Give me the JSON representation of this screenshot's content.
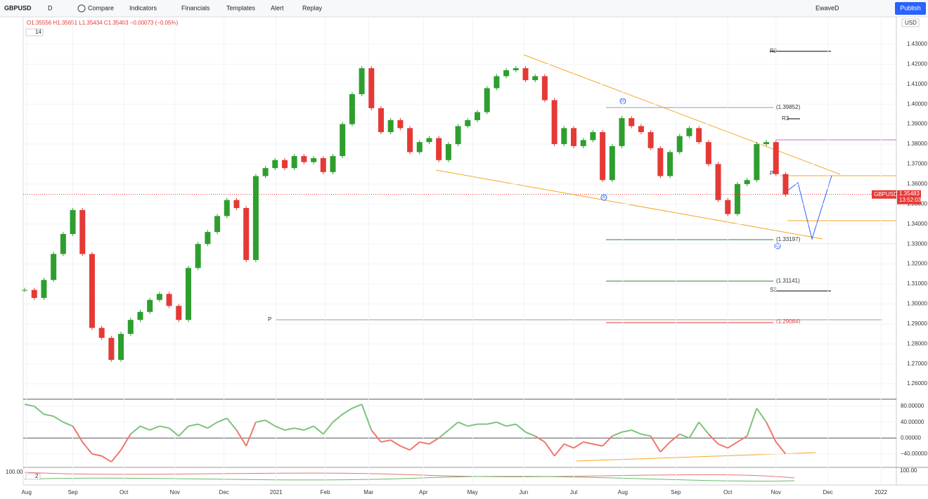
{
  "toolbar": {
    "symbol": "GBPUSD",
    "interval": "D",
    "compare": "Compare",
    "indicators": "Indicators",
    "financials": "Financials",
    "templates": "Templates",
    "alert": "Alert",
    "replay": "Replay",
    "layout": "EwaveD",
    "publish": "Publish",
    "currency": "USD"
  },
  "legend": {
    "ohlc": "O1.35556 H1.35651 L1.35434 C1.35483 −0.00073 (−0.05%)",
    "length": "14"
  },
  "price_tag": {
    "symbol": "GBPUSD",
    "price": "1.35483",
    "countdown": "13:52:03"
  },
  "annotations": {
    "r3_top": "R3",
    "level_b": "(1.39852)",
    "r3_mid": "R3",
    "pivot_right": "P",
    "level_c": "(1.33197)",
    "level_s": "(1.31141)",
    "s3": "S3",
    "pivot_left": "P",
    "level_low": "(1.29084)",
    "wave_a": "A",
    "wave_b": "B",
    "wave_c": "C",
    "pane3_top": "100.00",
    "pane3_left": "100.00",
    "pane3_setting": "2"
  },
  "chart_data": [
    {
      "type": "candlestick",
      "up_color": "#2e9e2e",
      "down_color": "#e53935",
      "close": [
        1.307,
        1.303,
        1.312,
        1.325,
        1.335,
        1.347,
        1.325,
        1.288,
        1.283,
        1.272,
        1.285,
        1.292,
        1.296,
        1.302,
        1.305,
        1.299,
        1.292,
        1.318,
        1.33,
        1.336,
        1.344,
        1.352,
        1.348,
        1.322,
        1.364,
        1.368,
        1.372,
        1.368,
        1.374,
        1.371,
        1.373,
        1.366,
        1.374,
        1.39,
        1.405,
        1.418,
        1.398,
        1.386,
        1.392,
        1.388,
        1.376,
        1.381,
        1.383,
        1.372,
        1.38,
        1.389,
        1.392,
        1.396,
        1.408,
        1.414,
        1.417,
        1.418,
        1.412,
        1.414,
        1.402,
        1.38,
        1.388,
        1.379,
        1.382,
        1.386,
        1.362,
        1.379,
        1.393,
        1.389,
        1.386,
        1.378,
        1.364,
        1.376,
        1.384,
        1.388,
        1.381,
        1.37,
        1.352,
        1.345,
        1.36,
        1.362,
        1.38,
        1.381,
        1.365,
        1.3548
      ],
      "xlim": [
        -0.15,
        90.5
      ],
      "xticks": [
        {
          "value": 0.2,
          "label": "Aug"
        },
        {
          "value": 5.0,
          "label": "Sep"
        },
        {
          "value": 10.3,
          "label": "Oct"
        },
        {
          "value": 15.6,
          "label": "Nov"
        },
        {
          "value": 20.7,
          "label": "Dec"
        },
        {
          "value": 26.1,
          "label": "2021"
        },
        {
          "value": 31.2,
          "label": "Feb"
        },
        {
          "value": 35.7,
          "label": "Mar"
        },
        {
          "value": 41.4,
          "label": "Apr"
        },
        {
          "value": 46.5,
          "label": "May"
        },
        {
          "value": 51.8,
          "label": "Jun"
        },
        {
          "value": 57.0,
          "label": "Jul"
        },
        {
          "value": 62.1,
          "label": "Aug"
        },
        {
          "value": 67.6,
          "label": "Sep"
        },
        {
          "value": 73.0,
          "label": "Oct"
        },
        {
          "value": 78.0,
          "label": "Nov"
        },
        {
          "value": 83.4,
          "label": "Dec"
        },
        {
          "value": 88.9,
          "label": "2022"
        }
      ],
      "ylim": [
        1.2523,
        1.4437
      ],
      "yticks": [
        {
          "value": 1.43,
          "label": "1.43000"
        },
        {
          "value": 1.42,
          "label": "1.42000"
        },
        {
          "value": 1.41,
          "label": "1.41000"
        },
        {
          "value": 1.4,
          "label": "1.40000"
        },
        {
          "value": 1.39,
          "label": "1.39000"
        },
        {
          "value": 1.38,
          "label": "1.38000"
        },
        {
          "value": 1.37,
          "label": "1.37000"
        },
        {
          "value": 1.36,
          "label": "1.36000"
        },
        {
          "value": 1.35,
          "label": "1.35000"
        },
        {
          "value": 1.34,
          "label": "1.34000"
        },
        {
          "value": 1.33,
          "label": "1.33000"
        },
        {
          "value": 1.32,
          "label": "1.32000"
        },
        {
          "value": 1.31,
          "label": "1.31000"
        },
        {
          "value": 1.3,
          "label": "1.30000"
        },
        {
          "value": 1.29,
          "label": "1.29000"
        },
        {
          "value": 1.28,
          "label": "1.28000"
        },
        {
          "value": 1.27,
          "label": "1.27000"
        },
        {
          "value": 1.26,
          "label": "1.26000"
        }
      ]
    },
    {
      "type": "line",
      "up_color": "#7cc47c",
      "down_color": "#f0776e",
      "values": [
        85,
        80,
        60,
        55,
        40,
        30,
        -10,
        -40,
        -45,
        -60,
        -30,
        10,
        30,
        20,
        30,
        25,
        5,
        30,
        35,
        25,
        40,
        50,
        20,
        -20,
        40,
        45,
        30,
        20,
        25,
        20,
        30,
        10,
        40,
        60,
        75,
        85,
        20,
        -10,
        -5,
        -20,
        -30,
        -10,
        -15,
        0,
        20,
        40,
        30,
        35,
        35,
        40,
        30,
        35,
        15,
        5,
        -10,
        -45,
        -15,
        -25,
        -10,
        -15,
        -20,
        5,
        15,
        20,
        10,
        5,
        -35,
        -10,
        10,
        0,
        40,
        10,
        -15,
        -25,
        -10,
        5,
        75,
        40,
        -10,
        -40
      ],
      "ylim": [
        -73.8,
        97.8
      ],
      "yticks": [
        {
          "value": 80,
          "label": "80.00000"
        },
        {
          "value": 40,
          "label": "40.00000"
        },
        {
          "value": 0,
          "label": "0.00000"
        },
        {
          "value": -40,
          "label": "−40.00000"
        }
      ]
    }
  ]
}
